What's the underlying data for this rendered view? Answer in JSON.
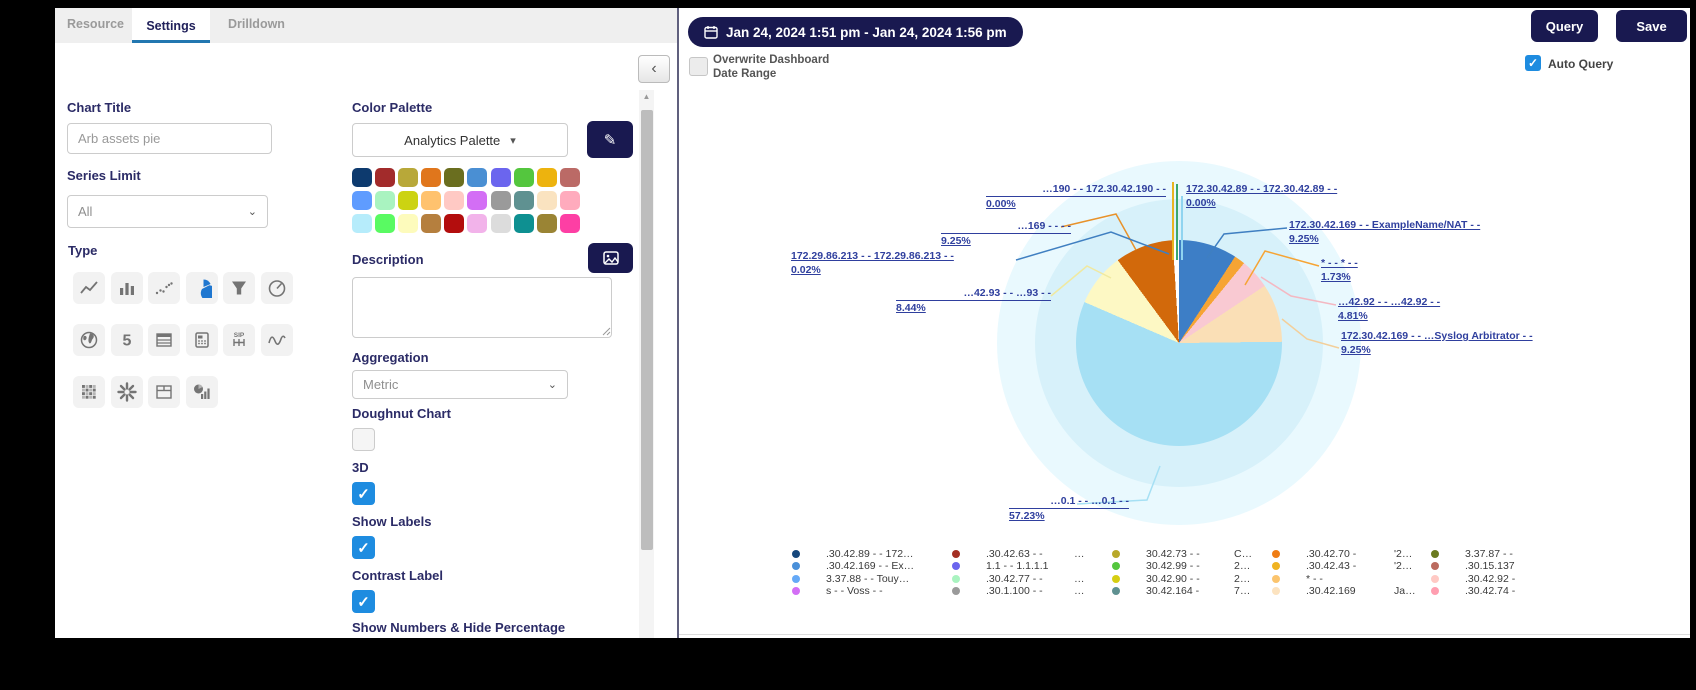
{
  "left_panel": {
    "tabs": [
      {
        "label": "Resource"
      },
      {
        "label": "Settings"
      },
      {
        "label": "Drilldown"
      }
    ],
    "chart_title_label": "Chart Title",
    "chart_title_value": "Arb assets pie",
    "series_limit_label": "Series Limit",
    "series_limit_value": "All",
    "type_label": "Type",
    "type_icons": [
      "line-chart",
      "bar-chart",
      "scatter",
      "pie",
      "funnel",
      "gauge",
      "map",
      "single-value",
      "table",
      "pbx",
      "sip",
      "trend",
      "heatmap",
      "radial",
      "form-table",
      "pie-bar"
    ],
    "type_selected": "pie",
    "color_palette_label": "Color Palette",
    "color_palette_value": "Analytics Palette",
    "swatches": [
      "#0d3a6e",
      "#a22b2b",
      "#b8a839",
      "#e0761c",
      "#6a6e1f",
      "#4a8fd3",
      "#6b65ee",
      "#54c63e",
      "#edb30e",
      "#bb6a66",
      "#5f9cff",
      "#a9f3c0",
      "#ccd312",
      "#ffc26e",
      "#ffc9c4",
      "#d36ef5",
      "#9a9a9a",
      "#5f9191",
      "#fae3c0",
      "#ffabbd",
      "#b6ecfb",
      "#59fa62",
      "#fdfbbc",
      "#b57f3e",
      "#b30d0d",
      "#f2b3ea",
      "#dcdcdc",
      "#0e9091",
      "#9a8434",
      "#fd3fa4"
    ],
    "description_label": "Description",
    "description_value": "",
    "aggregation_label": "Aggregation",
    "aggregation_value": "Metric",
    "toggles": [
      {
        "label": "Doughnut Chart",
        "checked": false
      },
      {
        "label": "3D",
        "checked": true
      },
      {
        "label": "Show Labels",
        "checked": true
      },
      {
        "label": "Contrast Label",
        "checked": true
      }
    ],
    "bottom_label": "Show Numbers & Hide Percentage"
  },
  "right_panel": {
    "date_range": "Jan 24, 2024 1:51 pm - Jan 24, 2024 1:56 pm",
    "overwrite_line1": "Overwrite Dashboard",
    "overwrite_line2": "Date Range",
    "overwrite_checked": false,
    "query_label": "Query",
    "save_label": "Save",
    "auto_query_label": "Auto Query",
    "auto_query_checked": true
  },
  "chart_data": {
    "type": "pie",
    "title": "Arb assets pie",
    "is_3d": true,
    "doughnut": false,
    "show_labels": true,
    "slices": [
      {
        "label": "172.30.42.169 - - ExampleName/NAT - -",
        "pct": 9.25,
        "pct_label": "9.25%",
        "color": "#3d7ec6"
      },
      {
        "label": "* - - * - -",
        "pct": 1.73,
        "pct_label": "1.73%",
        "color": "#f6a434"
      },
      {
        "label": "…42.92 - - …42.92 - -",
        "pct": 4.81,
        "pct_label": "4.81%",
        "color": "#f9c9d2"
      },
      {
        "label": "172.30.42.169 - - …Syslog Arbitrator - -",
        "pct": 9.25,
        "pct_label": "9.25%",
        "color": "#fadfb6"
      },
      {
        "label": "…0.1 - - …0.1 - -",
        "pct": 57.23,
        "pct_label": "57.23%",
        "color": "#a6e0f4"
      },
      {
        "label": "…42.93 - - …93 - -",
        "pct": 8.44,
        "pct_label": "8.44%",
        "color": "#fdf8c4"
      },
      {
        "label": "…169 - - - -",
        "pct": 9.25,
        "pct_label": "9.25%",
        "color": "#d2690b"
      },
      {
        "label": "172.29.86.213 - - 172.29.86.213 - -",
        "pct": 0.02,
        "pct_label": "0.02%",
        "color": "#e8b421"
      },
      {
        "label": "…190 - - 172.30.42.190 - -",
        "pct": 0.0,
        "pct_label": "0.00%",
        "color": "#3aa76d"
      },
      {
        "label": "172.30.42.89 - - 172.30.42.89 - -",
        "pct": 0.0,
        "pct_label": "0.00%",
        "color": "#8fd4f0"
      }
    ],
    "legend_columns": [
      {
        "entries": [
          {
            "color": "#16477c",
            "label": ".30.42.89 - - 172…",
            "extra": ""
          },
          {
            "color": "#4a90d9",
            "label": ".30.42.169 - - Ex…",
            "extra": ""
          },
          {
            "color": "#65a9f7",
            "label": "3.37.88 - - Touy…",
            "extra": ""
          },
          {
            "color": "#d36ef5",
            "label": "s - - Voss - -",
            "extra": ""
          }
        ]
      },
      {
        "entries": [
          {
            "color": "#a42f23",
            "label": ".30.42.63 - -",
            "extra": "…"
          },
          {
            "color": "#6b65ee",
            "label": "1.1 - - 1.1.1.1",
            "extra": ""
          },
          {
            "color": "#a9f3c0",
            "label": ".30.42.77 - -",
            "extra": "…"
          },
          {
            "color": "#9a9a9a",
            "label": ".30.1.100 - -",
            "extra": "…"
          }
        ]
      },
      {
        "entries": [
          {
            "color": "#b8a829",
            "label": "30.42.73 - -",
            "extra": "C…"
          },
          {
            "color": "#54c63e",
            "label": "30.42.99 - -",
            "extra": "2…"
          },
          {
            "color": "#d6ce12",
            "label": "30.42.90 - -",
            "extra": "2…"
          },
          {
            "color": "#5f9191",
            "label": "30.42.164 -",
            "extra": "7…"
          }
        ]
      },
      {
        "entries": [
          {
            "color": "#ef7d15",
            "label": ".30.42.70 -",
            "extra": "'2…"
          },
          {
            "color": "#f0b321",
            "label": ".30.42.43 -",
            "extra": "'2…"
          },
          {
            "color": "#fbc46d",
            "label": "* - -",
            "extra": ""
          },
          {
            "color": "#fce3c0",
            "label": ".30.42.169",
            "extra": "Ja…"
          }
        ]
      },
      {
        "entries": [
          {
            "color": "#6a7a1f",
            "label": "3.37.87 - -",
            "extra": ""
          },
          {
            "color": "#bb6a5e",
            "label": ".30.15.137",
            "extra": ""
          },
          {
            "color": "#ffc9c4",
            "label": ".30.42.92 -",
            "extra": ""
          },
          {
            "color": "#ff9eb0",
            "label": ".30.42.74 -",
            "extra": ""
          }
        ]
      }
    ]
  }
}
